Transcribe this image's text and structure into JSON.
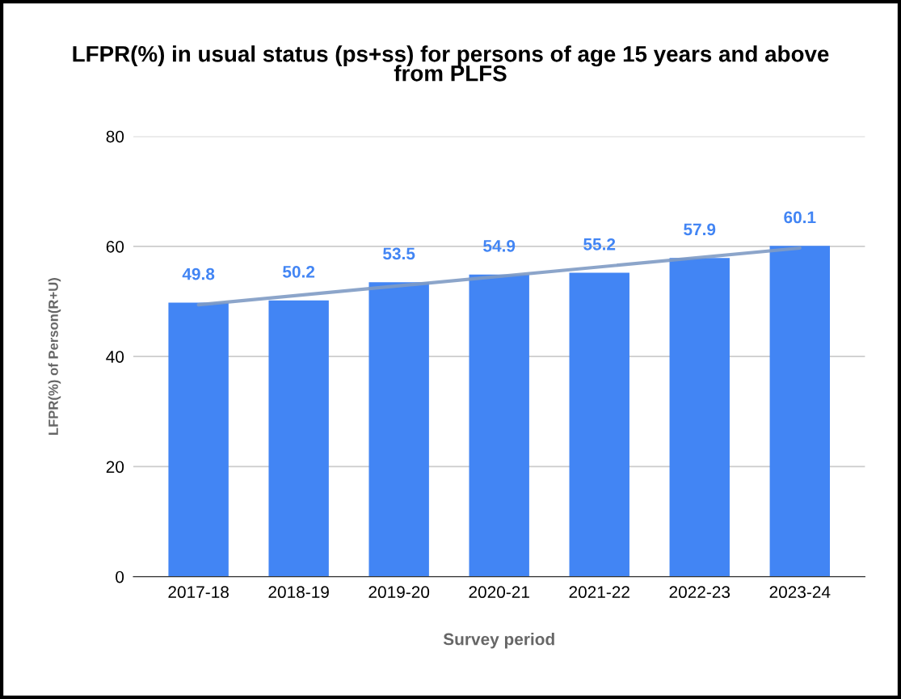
{
  "chart_data": {
    "type": "bar",
    "title": "LFPR(%) in usual status (ps+ss) for persons of age 15 years and above\nfrom PLFS",
    "xlabel": "Survey period",
    "ylabel": "LFPR(%) of Person(R+U)",
    "categories": [
      "2017-18",
      "2018-19",
      "2019-20",
      "2020-21",
      "2021-22",
      "2022-23",
      "2023-24"
    ],
    "series": [
      {
        "color": "#4285f4",
        "values": [
          49.8,
          50.2,
          53.5,
          54.9,
          55.2,
          57.9,
          60.1
        ],
        "value_labels": [
          "49.8",
          "50.2",
          "53.5",
          "54.9",
          "55.2",
          "57.9",
          "60.1"
        ]
      },
      {
        "type": "line",
        "color": "#7f9bc4",
        "x": [
          "2017-18",
          "2023-24"
        ],
        "values": [
          49.4,
          59.7
        ]
      }
    ],
    "ylim": [
      0,
      80
    ],
    "yticks": [
      0,
      20,
      40,
      60,
      80
    ],
    "grid": "y",
    "legend": false
  }
}
